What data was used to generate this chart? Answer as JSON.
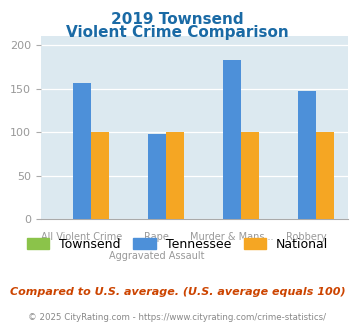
{
  "title_line1": "2019 Townsend",
  "title_line2": "Violent Crime Comparison",
  "categories": [
    "All Violent Crime",
    "Rape\nAggravated Assault",
    "Murder & Mans...",
    "Robbery"
  ],
  "tick_line1": [
    "",
    "Rape",
    "Murder & Mans...",
    ""
  ],
  "tick_line2": [
    "All Violent Crime",
    "Aggravated Assault",
    "",
    "Robbery"
  ],
  "series": {
    "Townsend": [
      0,
      0,
      0,
      0
    ],
    "Tennessee": [
      156,
      98,
      183,
      147
    ],
    "National": [
      100,
      100,
      100,
      100
    ]
  },
  "colors": {
    "Townsend": "#8bc34a",
    "Tennessee": "#4d90d9",
    "National": "#f5a623"
  },
  "ylim": [
    0,
    210
  ],
  "yticks": [
    0,
    50,
    100,
    150,
    200
  ],
  "plot_bg": "#dce9f0",
  "title_color": "#1a6aa5",
  "tick_color": "#999999",
  "footer_text": "Compared to U.S. average. (U.S. average equals 100)",
  "copyright_text": "© 2025 CityRating.com - https://www.cityrating.com/crime-statistics/",
  "footer_color": "#cc4400",
  "copyright_color": "#888888"
}
